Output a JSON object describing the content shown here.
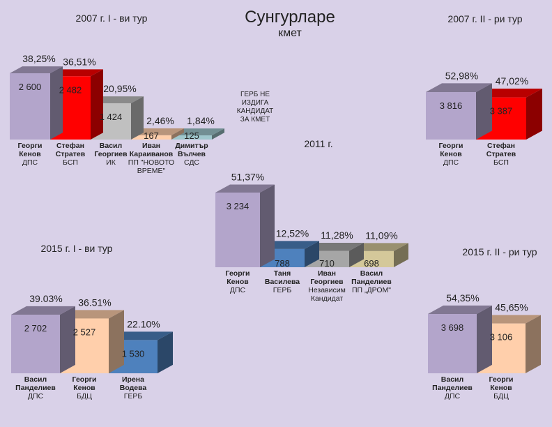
{
  "header": {
    "title": "Сунгурларе",
    "subtitle": "кмет"
  },
  "note": [
    "ГЕРБ НЕ",
    "ИЗДИГА",
    "КАНДИДАТ",
    "ЗА КМЕТ"
  ],
  "colors": {
    "background": "#d9d1e8",
    "purple": "#b3a5cb",
    "red": "#ff0000",
    "grey": "#c0c0c0",
    "peach": "#ffcfab",
    "teal": "#9fc7cc",
    "blue": "#4e81bd",
    "greyblue": "#a6a6a6",
    "khaki": "#d4c89a"
  },
  "chart_data": [
    {
      "type": "bar",
      "title": "2007 г. I - ви тур",
      "categories": [
        "Георги Кенов ДПС",
        "Стефан Стратев БСП",
        "Васил Георгиев ИК",
        "Иван Караиванов ПП \"НОВОТО ВРЕМЕ\"",
        "Димитър Вълчев СДС"
      ],
      "bars": [
        {
          "name": [
            "Георги",
            "Кенов"
          ],
          "party": [
            "ДПС"
          ],
          "value": 2600,
          "value_label": "2 600",
          "pct_label": "38,25%",
          "pct": 38.25,
          "color": "purple"
        },
        {
          "name": [
            "Стефан",
            "Стратев"
          ],
          "party": [
            "БСП"
          ],
          "value": 2482,
          "value_label": "2 482",
          "pct_label": "36,51%",
          "pct": 36.51,
          "color": "red"
        },
        {
          "name": [
            "Васил",
            "Георгиев"
          ],
          "party": [
            "ИК"
          ],
          "value": 1424,
          "value_label": "1 424",
          "pct_label": "20,95%",
          "pct": 20.95,
          "color": "grey"
        },
        {
          "name": [
            "Иван",
            "Караиванов"
          ],
          "party": [
            "ПП \"НОВОТО",
            "ВРЕМЕ\""
          ],
          "value": 167,
          "value_label": "167",
          "pct_label": "2,46%",
          "pct": 2.46,
          "color": "peach"
        },
        {
          "name": [
            "Димитър",
            "Вълчев"
          ],
          "party": [
            "СДС"
          ],
          "value": 125,
          "value_label": "125",
          "pct_label": "1,84%",
          "pct": 1.84,
          "color": "teal"
        }
      ]
    },
    {
      "type": "bar",
      "title": "2007 г. II - ри тур",
      "categories": [
        "Георги Кенов ДПС",
        "Стефан Стратев БСП"
      ],
      "bars": [
        {
          "name": [
            "Георги",
            "Кенов"
          ],
          "party": [
            "ДПС"
          ],
          "value": 3816,
          "value_label": "3 816",
          "pct_label": "52,98%",
          "pct": 52.98,
          "color": "purple"
        },
        {
          "name": [
            "Стефан",
            "Стратев"
          ],
          "party": [
            "БСП"
          ],
          "value": 3387,
          "value_label": "3 387",
          "pct_label": "47,02%",
          "pct": 47.02,
          "color": "red"
        }
      ]
    },
    {
      "type": "bar",
      "title": "2011 г.",
      "categories": [
        "Георги Кенов ДПС",
        "Таня Василева ГЕРБ",
        "Иван Георгиев Независим Кандидат",
        "Васил Панделиев ПП „ДРОМ\""
      ],
      "bars": [
        {
          "name": [
            "Георги",
            "Кенов"
          ],
          "party": [
            "ДПС"
          ],
          "value": 3234,
          "value_label": "3 234",
          "pct_label": "51,37%",
          "pct": 51.37,
          "color": "purple"
        },
        {
          "name": [
            "Таня",
            "Василева"
          ],
          "party": [
            "ГЕРБ"
          ],
          "value": 788,
          "value_label": "788",
          "pct_label": "12,52%",
          "pct": 12.52,
          "color": "blue"
        },
        {
          "name": [
            "Иван",
            "Георгиев"
          ],
          "party": [
            "Независим",
            "Кандидат"
          ],
          "value": 710,
          "value_label": "710",
          "pct_label": "11,28%",
          "pct": 11.28,
          "color": "greyblue"
        },
        {
          "name": [
            "Васил",
            "Панделиев"
          ],
          "party": [
            "ПП „ДРОМ\""
          ],
          "value": 698,
          "value_label": "698",
          "pct_label": "11,09%",
          "pct": 11.09,
          "color": "khaki"
        }
      ]
    },
    {
      "type": "bar",
      "title": "2015 г. I - ви тур",
      "categories": [
        "Васил Панделиев ДПС",
        "Георги Кенов БДЦ",
        "Ирена Водева ГЕРБ"
      ],
      "bars": [
        {
          "name": [
            "Васил",
            "Панделиев"
          ],
          "party": [
            "ДПС"
          ],
          "value": 2702,
          "value_label": "2 702",
          "pct_label": "39.03%",
          "pct": 39.03,
          "color": "purple"
        },
        {
          "name": [
            "Георги",
            "Кенов"
          ],
          "party": [
            "БДЦ"
          ],
          "value": 2527,
          "value_label": "2 527",
          "pct_label": "36.51%",
          "pct": 36.51,
          "color": "peach"
        },
        {
          "name": [
            "Ирена",
            "Водева"
          ],
          "party": [
            "ГЕРБ"
          ],
          "value": 1530,
          "value_label": "1 530",
          "pct_label": "22.10%",
          "pct": 22.1,
          "color": "blue"
        }
      ]
    },
    {
      "type": "bar",
      "title": "2015 г. II - ри тур",
      "categories": [
        "Васил Панделиев ДПС",
        "Георги Кенов БДЦ"
      ],
      "bars": [
        {
          "name": [
            "Васил",
            "Панделиев"
          ],
          "party": [
            "ДПС"
          ],
          "value": 3698,
          "value_label": "3 698",
          "pct_label": "54,35%",
          "pct": 54.35,
          "color": "purple"
        },
        {
          "name": [
            "Георги",
            "Кенов"
          ],
          "party": [
            "БДЦ"
          ],
          "value": 3106,
          "value_label": "3 106",
          "pct_label": "45,65%",
          "pct": 45.65,
          "color": "peach"
        }
      ]
    }
  ]
}
